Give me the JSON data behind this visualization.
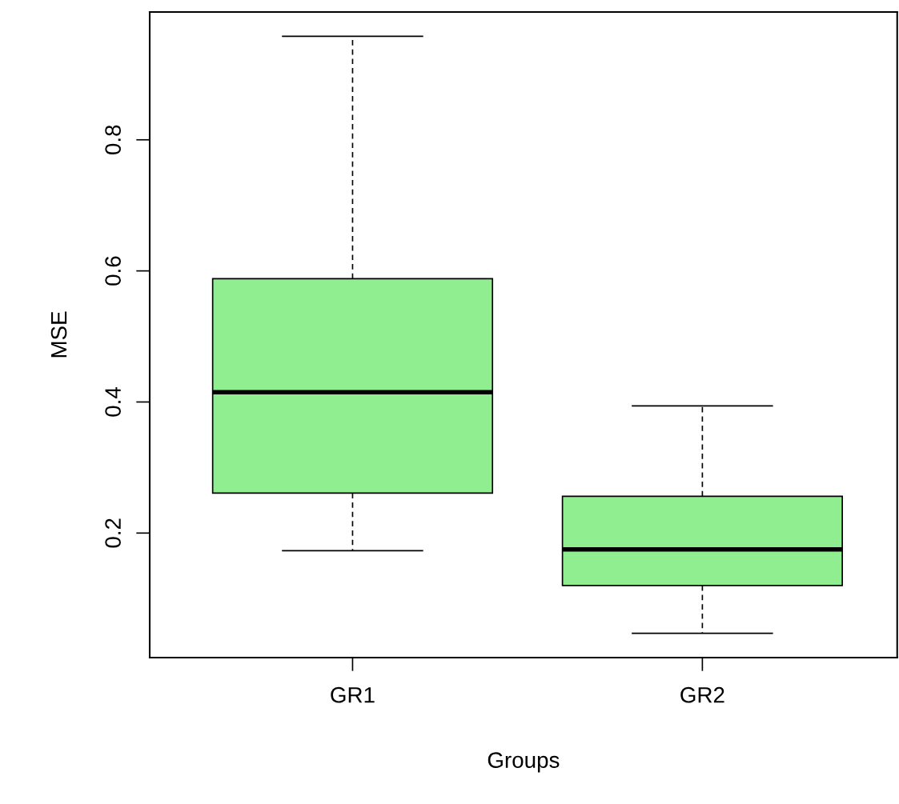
{
  "chart_data": {
    "type": "box",
    "xlabel": "Groups",
    "ylabel": "MSE",
    "categories": [
      "GR1",
      "GR2"
    ],
    "color": "#90ee90",
    "boxes": [
      {
        "low": 0.173,
        "q1": 0.261,
        "median": 0.415,
        "q3": 0.588,
        "high": 0.958
      },
      {
        "low": 0.047,
        "q1": 0.12,
        "median": 0.175,
        "q3": 0.256,
        "high": 0.394
      }
    ],
    "ylim": [
      0.01,
      0.995
    ],
    "yticks": [
      0.2,
      0.4,
      0.6,
      0.8
    ],
    "grid": false
  }
}
